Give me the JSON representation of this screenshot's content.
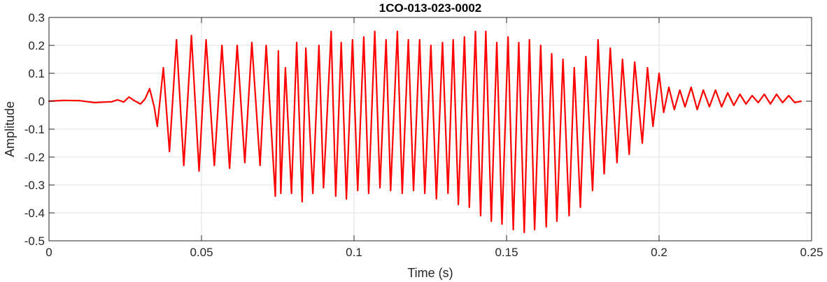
{
  "chart_data": {
    "type": "line",
    "title": "1CO-013-023-0002",
    "xlabel": "Time (s)",
    "ylabel": "Amplitude",
    "xlim": [
      0,
      0.25
    ],
    "ylim": [
      -0.5,
      0.3
    ],
    "xticks": [
      0,
      0.05,
      0.1,
      0.15,
      0.2,
      0.25
    ],
    "xtick_labels": [
      "0",
      "0.05",
      "0.1",
      "0.15",
      "0.2",
      "0.25"
    ],
    "yticks": [
      -0.5,
      -0.4,
      -0.3,
      -0.2,
      -0.1,
      0,
      0.1,
      0.2,
      0.3
    ],
    "ytick_labels": [
      "-0.5",
      "-0.4",
      "-0.3",
      "-0.2",
      "-0.1",
      "0",
      "0.1",
      "0.2",
      "0.3"
    ],
    "grid": true,
    "line_color": "#ff0000",
    "series": [
      {
        "name": "",
        "x": [
          0,
          0.005,
          0.01,
          0.015,
          0.0185,
          0.0205,
          0.0225,
          0.0245,
          0.0262,
          0.028,
          0.03,
          0.0315,
          0.033,
          0.0345,
          0.0355,
          0.0375,
          0.0395,
          0.0418,
          0.0442,
          0.0467,
          0.0492,
          0.0515,
          0.0542,
          0.0567,
          0.0592,
          0.0617,
          0.0642,
          0.0665,
          0.0692,
          0.0712,
          0.0742,
          0.0752,
          0.076,
          0.0775,
          0.0795,
          0.0812,
          0.083,
          0.0842,
          0.0865,
          0.0885,
          0.09,
          0.0925,
          0.094,
          0.0958,
          0.0975,
          0.0995,
          0.1012,
          0.1032,
          0.1048,
          0.1068,
          0.1085,
          0.1105,
          0.112,
          0.1142,
          0.1158,
          0.1178,
          0.1195,
          0.1215,
          0.1232,
          0.1252,
          0.127,
          0.129,
          0.1308,
          0.1325,
          0.1342,
          0.1362,
          0.1378,
          0.1398,
          0.1415,
          0.1432,
          0.145,
          0.1468,
          0.1485,
          0.1505,
          0.1522,
          0.154,
          0.1558,
          0.1575,
          0.1592,
          0.1612,
          0.163,
          0.1648,
          0.1665,
          0.1685,
          0.1705,
          0.1722,
          0.1742,
          0.176,
          0.1782,
          0.18,
          0.182,
          0.184,
          0.1862,
          0.188,
          0.1902,
          0.192,
          0.1945,
          0.1962,
          0.198,
          0.2,
          0.2015,
          0.2032,
          0.205,
          0.2068,
          0.2085,
          0.2105,
          0.2125,
          0.2145,
          0.2165,
          0.2185,
          0.2205,
          0.2225,
          0.2245,
          0.2265,
          0.2285,
          0.2305,
          0.2325,
          0.2345,
          0.2365,
          0.2385,
          0.2405,
          0.2425,
          0.2445,
          0.2465
        ],
        "y": [
          0,
          0.003,
          0.002,
          -0.005,
          -0.003,
          -0.002,
          0.005,
          -0.003,
          0.015,
          0.002,
          -0.01,
          0.008,
          0.045,
          -0.02,
          -0.09,
          0.12,
          -0.18,
          0.22,
          -0.23,
          0.235,
          -0.25,
          0.22,
          -0.23,
          0.2,
          -0.24,
          0.2,
          -0.22,
          0.21,
          -0.23,
          0.2,
          -0.34,
          0.18,
          -0.33,
          0.12,
          -0.33,
          0.21,
          -0.36,
          0.19,
          -0.33,
          0.2,
          -0.31,
          0.25,
          -0.34,
          0.21,
          -0.35,
          0.22,
          -0.32,
          0.23,
          -0.33,
          0.25,
          -0.31,
          0.22,
          -0.32,
          0.25,
          -0.33,
          0.22,
          -0.32,
          0.22,
          -0.33,
          0.2,
          -0.35,
          0.21,
          -0.33,
          0.22,
          -0.37,
          0.23,
          -0.38,
          0.25,
          -0.41,
          0.25,
          -0.43,
          0.21,
          -0.44,
          0.23,
          -0.46,
          0.21,
          -0.47,
          0.22,
          -0.46,
          0.2,
          -0.45,
          0.17,
          -0.43,
          0.15,
          -0.41,
          0.12,
          -0.38,
          0.16,
          -0.32,
          0.22,
          -0.26,
          0.19,
          -0.22,
          0.15,
          -0.19,
          0.14,
          -0.15,
          0.12,
          -0.09,
          0.1,
          -0.04,
          0.05,
          -0.03,
          0.04,
          -0.02,
          0.05,
          -0.03,
          0.04,
          -0.02,
          0.04,
          -0.02,
          0.03,
          -0.015,
          0.025,
          -0.01,
          0.02,
          -0.005,
          0.025,
          -0.01,
          0.025,
          -0.005,
          0.02,
          -0.005,
          0.0
        ]
      }
    ]
  }
}
